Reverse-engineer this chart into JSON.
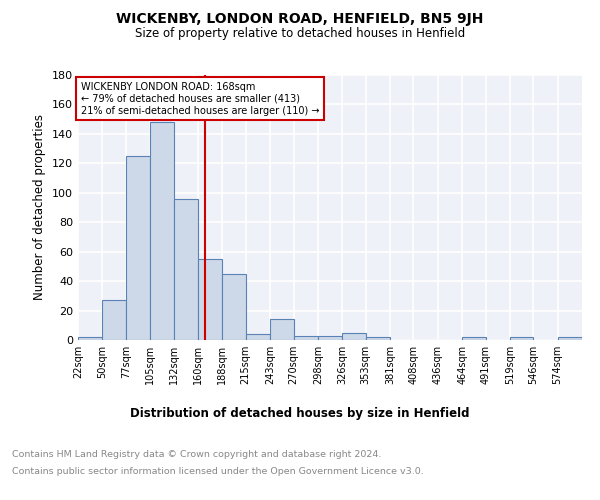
{
  "title": "WICKENBY, LONDON ROAD, HENFIELD, BN5 9JH",
  "subtitle": "Size of property relative to detached houses in Henfield",
  "xlabel": "Distribution of detached houses by size in Henfield",
  "ylabel": "Number of detached properties",
  "bar_edges": [
    22,
    50,
    77,
    105,
    132,
    160,
    188,
    215,
    243,
    270,
    298,
    326,
    353,
    381,
    408,
    436,
    464,
    491,
    519,
    546,
    574
  ],
  "bar_heights": [
    2,
    27,
    125,
    148,
    96,
    55,
    45,
    4,
    14,
    3,
    3,
    5,
    2,
    0,
    0,
    0,
    2,
    0,
    2,
    0,
    2
  ],
  "bar_color": "#cdd8e8",
  "bar_edge_color": "#5b82b5",
  "vline_x": 168,
  "vline_color": "#cc0000",
  "annotation_text": "WICKENBY LONDON ROAD: 168sqm\n← 79% of detached houses are smaller (413)\n21% of semi-detached houses are larger (110) →",
  "annotation_box_color": "white",
  "annotation_box_edge_color": "#cc0000",
  "ylim": [
    0,
    180
  ],
  "yticks": [
    0,
    20,
    40,
    60,
    80,
    100,
    120,
    140,
    160,
    180
  ],
  "tick_labels": [
    "22sqm",
    "50sqm",
    "77sqm",
    "105sqm",
    "132sqm",
    "160sqm",
    "188sqm",
    "215sqm",
    "243sqm",
    "270sqm",
    "298sqm",
    "326sqm",
    "353sqm",
    "381sqm",
    "408sqm",
    "436sqm",
    "464sqm",
    "491sqm",
    "519sqm",
    "546sqm",
    "574sqm"
  ],
  "footer_line1": "Contains HM Land Registry data © Crown copyright and database right 2024.",
  "footer_line2": "Contains public sector information licensed under the Open Government Licence v3.0.",
  "plot_bg_color": "#eef1f8"
}
